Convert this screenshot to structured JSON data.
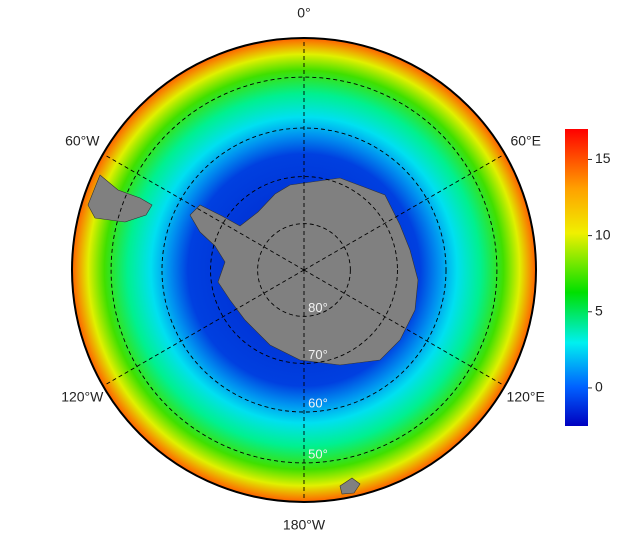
{
  "map": {
    "meridians": [
      {
        "value": 0,
        "label": "0°"
      },
      {
        "value": 60,
        "label": "60°E"
      },
      {
        "value": 120,
        "label": "120°E"
      },
      {
        "value": 180,
        "label": "180°W"
      },
      {
        "value": -120,
        "label": "120°W"
      },
      {
        "value": -60,
        "label": "60°W"
      }
    ],
    "parallels": [
      {
        "value": 80,
        "label": "80°"
      },
      {
        "value": 70,
        "label": "70°"
      },
      {
        "value": 60,
        "label": "60°"
      },
      {
        "value": 50,
        "label": "50°"
      }
    ]
  },
  "colorbar": {
    "lim": [
      -2.5,
      17
    ],
    "ticks": [
      0,
      5,
      10,
      15
    ]
  }
}
